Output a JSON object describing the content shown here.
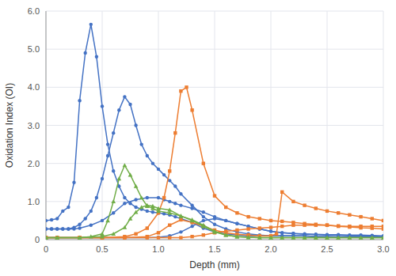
{
  "chart_data": {
    "type": "line",
    "xlabel": "Depth (mm)",
    "ylabel": "Oxidation Index (OI)",
    "xlim": [
      0,
      3.0
    ],
    "ylim": [
      0,
      6.0
    ],
    "xticks": [
      0,
      0.5,
      {
        "value": 1.0,
        "label": "1.0"
      },
      1.5,
      {
        "value": 2.0,
        "label": "2.0"
      },
      2.5,
      {
        "value": 3.0,
        "label": "3.0"
      }
    ],
    "yticks": [
      0,
      {
        "value": 1.0,
        "label": "1.0"
      },
      {
        "value": 2.0,
        "label": "2.0"
      },
      {
        "value": 3.0,
        "label": "3.0"
      },
      {
        "value": 4.0,
        "label": "4.0"
      },
      {
        "value": 5.0,
        "label": "5.0"
      },
      {
        "value": 6.0,
        "label": "6.0"
      }
    ],
    "grid": true,
    "series": [
      {
        "color": "#4472c4",
        "marker": "circle",
        "x": [
          0.0,
          0.05,
          0.1,
          0.15,
          0.2,
          0.25,
          0.3,
          0.35,
          0.4,
          0.45,
          0.5,
          0.55,
          0.6,
          0.65,
          0.7,
          0.75,
          0.8,
          0.85,
          0.9,
          0.95,
          1.0,
          1.05,
          1.1,
          1.15,
          1.2,
          1.3,
          1.4,
          1.5,
          1.6,
          1.7,
          1.8,
          1.9,
          2.0,
          2.1,
          2.2,
          2.3,
          2.4,
          2.5,
          2.6,
          2.7,
          2.8,
          2.9,
          3.0
        ],
        "values": [
          0.5,
          0.52,
          0.55,
          0.75,
          0.85,
          1.5,
          3.65,
          4.9,
          5.65,
          4.8,
          3.5,
          2.5,
          1.8,
          1.4,
          1.1,
          0.95,
          0.85,
          0.8,
          0.75,
          0.72,
          0.7,
          0.68,
          0.65,
          0.6,
          0.55,
          0.45,
          0.3,
          0.2,
          0.15,
          0.12,
          0.1,
          0.1,
          0.1,
          0.1,
          0.1,
          0.1,
          0.08,
          0.08,
          0.07,
          0.07,
          0.07,
          0.07,
          0.07
        ]
      },
      {
        "color": "#4472c4",
        "marker": "circle",
        "x": [
          0.0,
          0.05,
          0.1,
          0.15,
          0.2,
          0.25,
          0.3,
          0.35,
          0.4,
          0.45,
          0.5,
          0.55,
          0.6,
          0.65,
          0.7,
          0.75,
          0.8,
          0.85,
          0.9,
          0.95,
          1.0,
          1.05,
          1.1,
          1.15,
          1.2,
          1.3,
          1.4,
          1.5,
          1.6,
          1.7,
          1.8,
          1.9,
          2.0,
          2.1,
          2.2,
          2.3,
          2.4,
          2.5,
          2.6,
          2.7,
          2.8,
          2.9,
          3.0
        ],
        "values": [
          0.28,
          0.28,
          0.28,
          0.28,
          0.28,
          0.32,
          0.4,
          0.55,
          0.75,
          1.1,
          1.6,
          2.2,
          2.8,
          3.4,
          3.75,
          3.55,
          3.0,
          2.5,
          2.2,
          2.0,
          1.85,
          1.7,
          1.55,
          1.4,
          1.2,
          0.9,
          0.6,
          0.4,
          0.28,
          0.2,
          0.15,
          0.12,
          0.1,
          0.1,
          0.1,
          0.1,
          0.08,
          0.08,
          0.07,
          0.07,
          0.07,
          0.07,
          0.07
        ]
      },
      {
        "color": "#4472c4",
        "marker": "circle",
        "x": [
          0.0,
          0.05,
          0.1,
          0.15,
          0.2,
          0.25,
          0.3,
          0.4,
          0.5,
          0.6,
          0.7,
          0.8,
          0.9,
          1.0,
          1.05,
          1.1,
          1.15,
          1.2,
          1.3,
          1.4,
          1.5,
          1.6,
          1.7,
          1.8,
          1.9,
          2.0,
          2.1,
          2.2,
          2.3,
          2.4,
          2.5,
          2.6,
          2.7,
          2.8,
          2.9,
          3.0
        ],
        "values": [
          0.28,
          0.28,
          0.28,
          0.28,
          0.28,
          0.28,
          0.3,
          0.38,
          0.5,
          0.7,
          0.95,
          1.05,
          1.1,
          1.1,
          1.05,
          1.0,
          0.95,
          0.9,
          0.82,
          0.72,
          0.6,
          0.5,
          0.42,
          0.35,
          0.28,
          0.22,
          0.18,
          0.16,
          0.14,
          0.13,
          0.12,
          0.11,
          0.1,
          0.1,
          0.1,
          0.08
        ]
      },
      {
        "color": "#4472c4",
        "marker": "circle",
        "x": [
          0.0,
          0.1,
          0.3,
          0.5,
          0.7,
          0.9,
          1.0,
          1.1,
          1.2,
          1.3,
          1.4,
          1.5,
          1.6,
          1.7,
          1.8,
          1.9,
          2.0,
          2.1,
          2.2,
          2.3,
          2.4,
          2.5,
          2.6,
          2.7,
          2.8,
          2.9,
          3.0
        ],
        "values": [
          0.05,
          0.05,
          0.05,
          0.05,
          0.05,
          0.05,
          0.06,
          0.1,
          0.2,
          0.35,
          0.5,
          0.55,
          0.5,
          0.42,
          0.35,
          0.28,
          0.22,
          0.18,
          0.16,
          0.15,
          0.14,
          0.13,
          0.13,
          0.12,
          0.12,
          0.11,
          0.1
        ]
      },
      {
        "color": "#ed7d31",
        "marker": "square",
        "x": [
          0.0,
          0.1,
          0.3,
          0.5,
          0.7,
          0.8,
          0.9,
          1.0,
          1.05,
          1.1,
          1.15,
          1.2,
          1.25,
          1.3,
          1.4,
          1.5,
          1.6,
          1.7,
          1.8,
          1.9,
          2.0,
          2.1,
          2.2,
          2.3,
          2.4,
          2.5,
          2.6,
          2.7,
          2.8,
          2.9,
          3.0
        ],
        "values": [
          0.05,
          0.05,
          0.05,
          0.05,
          0.08,
          0.15,
          0.3,
          0.7,
          1.1,
          1.8,
          2.8,
          3.9,
          4.0,
          3.4,
          2.0,
          1.15,
          0.85,
          0.7,
          0.6,
          0.55,
          0.5,
          0.48,
          0.45,
          0.42,
          0.4,
          0.38,
          0.35,
          0.33,
          0.31,
          0.3,
          0.28
        ]
      },
      {
        "color": "#ed7d31",
        "marker": "square",
        "x": [
          0.0,
          0.1,
          0.3,
          0.5,
          0.7,
          0.9,
          1.0,
          1.1,
          1.2,
          1.3,
          1.4,
          1.5,
          1.6,
          1.7,
          1.8,
          1.9,
          2.0,
          2.05,
          2.1,
          2.2,
          2.3,
          2.4,
          2.5,
          2.6,
          2.7,
          2.8,
          2.9,
          3.0
        ],
        "values": [
          0.05,
          0.05,
          0.05,
          0.05,
          0.05,
          0.08,
          0.18,
          0.38,
          0.52,
          0.45,
          0.35,
          0.25,
          0.18,
          0.14,
          0.12,
          0.1,
          0.1,
          0.15,
          1.25,
          1.0,
          0.9,
          0.82,
          0.75,
          0.7,
          0.65,
          0.6,
          0.55,
          0.5
        ]
      },
      {
        "color": "#ed7d31",
        "marker": "square",
        "x": [
          0.0,
          0.1,
          0.3,
          0.5,
          0.7,
          0.9,
          1.0,
          1.1,
          1.2,
          1.3,
          1.4,
          1.5,
          1.6,
          1.7,
          1.8,
          1.9,
          2.0,
          2.1,
          2.2,
          2.3,
          2.4,
          2.5,
          2.6,
          2.7,
          2.8,
          2.9,
          3.0
        ],
        "values": [
          0.05,
          0.05,
          0.05,
          0.05,
          0.05,
          0.05,
          0.05,
          0.05,
          0.05,
          0.08,
          0.12,
          0.18,
          0.22,
          0.25,
          0.28,
          0.3,
          0.32,
          0.35,
          0.38,
          0.38,
          0.38,
          0.38,
          0.36,
          0.35,
          0.35,
          0.35,
          0.35
        ]
      },
      {
        "color": "#70ad47",
        "marker": "triangle",
        "x": [
          0.0,
          0.1,
          0.3,
          0.4,
          0.5,
          0.55,
          0.6,
          0.65,
          0.7,
          0.75,
          0.8,
          0.85,
          0.9,
          0.95,
          1.0,
          1.1,
          1.2,
          1.3,
          1.4,
          1.5,
          1.6,
          1.7,
          1.8,
          1.9,
          2.0,
          2.1,
          2.2,
          2.3,
          2.4,
          2.5,
          2.6,
          2.7,
          2.8,
          2.9,
          3.0
        ],
        "values": [
          0.05,
          0.05,
          0.05,
          0.08,
          0.15,
          0.5,
          1.0,
          1.6,
          1.95,
          1.7,
          1.4,
          1.1,
          0.88,
          0.82,
          0.75,
          0.7,
          0.62,
          0.52,
          0.38,
          0.22,
          0.12,
          0.08,
          0.06,
          0.05,
          0.05,
          0.05,
          0.05,
          0.05,
          0.05,
          0.05,
          0.05,
          0.05,
          0.05,
          0.05,
          0.05
        ]
      },
      {
        "color": "#70ad47",
        "marker": "triangle",
        "x": [
          0.0,
          0.1,
          0.3,
          0.5,
          0.6,
          0.7,
          0.75,
          0.8,
          0.85,
          0.9,
          0.95,
          1.0,
          1.1,
          1.2,
          1.3,
          1.4,
          1.5,
          1.6,
          1.7,
          1.8,
          1.9,
          2.0,
          2.1,
          2.2,
          2.3,
          2.4,
          2.5,
          2.6,
          2.7,
          2.8,
          2.9,
          3.0
        ],
        "values": [
          0.05,
          0.05,
          0.05,
          0.08,
          0.15,
          0.32,
          0.55,
          0.72,
          0.85,
          0.9,
          0.88,
          0.82,
          0.78,
          0.62,
          0.5,
          0.35,
          0.2,
          0.12,
          0.08,
          0.06,
          0.05,
          0.05,
          0.05,
          0.05,
          0.05,
          0.05,
          0.05,
          0.05,
          0.05,
          0.05,
          0.05,
          0.05
        ]
      }
    ]
  }
}
